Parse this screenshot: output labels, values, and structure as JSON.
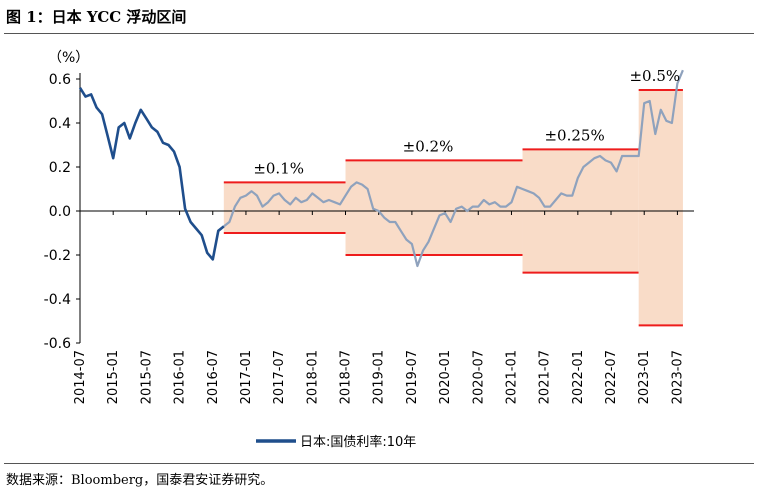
{
  "header": {
    "title": "图 1：日本 YCC 浮动区间"
  },
  "footer": {
    "source": "数据来源：Bloomberg，国泰君安证券研究。"
  },
  "colors": {
    "series": "#1f4e8c",
    "series_light": "#8fa2bd",
    "band": "#f9dcc8",
    "band_line": "#ee1c1c"
  },
  "chart_data": {
    "type": "line",
    "title": "日本 YCC 浮动区间",
    "unit_label": "（%）",
    "ylim": [
      -0.6,
      0.6
    ],
    "yticks": [
      0.6,
      0.4,
      0.2,
      0.0,
      -0.2,
      -0.4,
      -0.6
    ],
    "ytick_labels": [
      "0.6",
      "0.4",
      "0.2",
      "0.0",
      "-0.2",
      "-0.4",
      "-0.6"
    ],
    "xlim": [
      "2014-07",
      "2023-10"
    ],
    "xticks": [
      "2014-07",
      "2015-01",
      "2015-07",
      "2016-01",
      "2016-07",
      "2017-01",
      "2017-07",
      "2018-01",
      "2018-07",
      "2019-01",
      "2019-07",
      "2020-01",
      "2020-07",
      "2021-01",
      "2021-07",
      "2022-01",
      "2022-07",
      "2023-01",
      "2023-07"
    ],
    "legend": [
      "日本:国债利率:10年"
    ],
    "bands": [
      {
        "label": "±0.1%",
        "start": "2016-09",
        "end": "2018-07",
        "upper": 0.13,
        "lower": -0.1
      },
      {
        "label": "±0.2%",
        "start": "2018-07",
        "end": "2021-03",
        "upper": 0.23,
        "lower": -0.2
      },
      {
        "label": "±0.25%",
        "start": "2021-03",
        "end": "2022-12",
        "upper": 0.28,
        "lower": -0.28
      },
      {
        "label": "±0.5%",
        "start": "2022-12",
        "end": "2023-08",
        "upper": 0.55,
        "lower": -0.52
      }
    ],
    "series": [
      {
        "name": "日本:国债利率:10年",
        "x": [
          "2014-07",
          "2014-08",
          "2014-09",
          "2014-10",
          "2014-11",
          "2014-12",
          "2015-01",
          "2015-02",
          "2015-03",
          "2015-04",
          "2015-05",
          "2015-06",
          "2015-07",
          "2015-08",
          "2015-09",
          "2015-10",
          "2015-11",
          "2015-12",
          "2016-01",
          "2016-02",
          "2016-03",
          "2016-04",
          "2016-05",
          "2016-06",
          "2016-07",
          "2016-08",
          "2016-09",
          "2016-10",
          "2016-11",
          "2016-12",
          "2017-01",
          "2017-02",
          "2017-03",
          "2017-04",
          "2017-05",
          "2017-06",
          "2017-07",
          "2017-08",
          "2017-09",
          "2017-10",
          "2017-11",
          "2017-12",
          "2018-01",
          "2018-02",
          "2018-03",
          "2018-04",
          "2018-05",
          "2018-06",
          "2018-07",
          "2018-08",
          "2018-09",
          "2018-10",
          "2018-11",
          "2018-12",
          "2019-01",
          "2019-02",
          "2019-03",
          "2019-04",
          "2019-05",
          "2019-06",
          "2019-07",
          "2019-08",
          "2019-09",
          "2019-10",
          "2019-11",
          "2019-12",
          "2020-01",
          "2020-02",
          "2020-03",
          "2020-04",
          "2020-05",
          "2020-06",
          "2020-07",
          "2020-08",
          "2020-09",
          "2020-10",
          "2020-11",
          "2020-12",
          "2021-01",
          "2021-02",
          "2021-03",
          "2021-04",
          "2021-05",
          "2021-06",
          "2021-07",
          "2021-08",
          "2021-09",
          "2021-10",
          "2021-11",
          "2021-12",
          "2022-01",
          "2022-02",
          "2022-03",
          "2022-04",
          "2022-05",
          "2022-06",
          "2022-07",
          "2022-08",
          "2022-09",
          "2022-10",
          "2022-11",
          "2022-12",
          "2023-01",
          "2023-02",
          "2023-03",
          "2023-04",
          "2023-05",
          "2023-06",
          "2023-07",
          "2023-08"
        ],
        "values": [
          0.56,
          0.52,
          0.53,
          0.47,
          0.44,
          0.34,
          0.24,
          0.38,
          0.4,
          0.33,
          0.4,
          0.46,
          0.42,
          0.38,
          0.36,
          0.31,
          0.3,
          0.27,
          0.2,
          0.01,
          -0.05,
          -0.08,
          -0.11,
          -0.19,
          -0.22,
          -0.09,
          -0.07,
          -0.05,
          0.02,
          0.06,
          0.07,
          0.09,
          0.07,
          0.02,
          0.04,
          0.07,
          0.08,
          0.05,
          0.03,
          0.06,
          0.04,
          0.05,
          0.08,
          0.06,
          0.04,
          0.05,
          0.04,
          0.03,
          0.07,
          0.11,
          0.13,
          0.12,
          0.1,
          0.01,
          0.0,
          -0.03,
          -0.05,
          -0.05,
          -0.09,
          -0.13,
          -0.15,
          -0.25,
          -0.18,
          -0.14,
          -0.08,
          -0.02,
          -0.01,
          -0.05,
          0.01,
          0.02,
          0.0,
          0.02,
          0.02,
          0.05,
          0.03,
          0.04,
          0.02,
          0.02,
          0.04,
          0.11,
          0.1,
          0.09,
          0.08,
          0.06,
          0.02,
          0.02,
          0.05,
          0.08,
          0.07,
          0.07,
          0.15,
          0.2,
          0.22,
          0.24,
          0.25,
          0.23,
          0.22,
          0.18,
          0.25,
          0.25,
          0.25,
          0.25,
          0.49,
          0.5,
          0.35,
          0.46,
          0.41,
          0.4,
          0.58,
          0.64
        ]
      }
    ]
  }
}
